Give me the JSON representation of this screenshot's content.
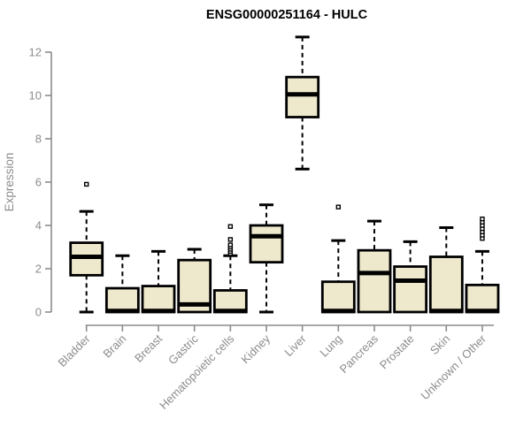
{
  "chart": {
    "title": "ENSG00000251164 - HULC",
    "ylabel": "Expression"
  },
  "chart_data": {
    "type": "boxplot",
    "title": "ENSG00000251164 - HULC",
    "xlabel": "",
    "ylabel": "Expression",
    "ylim": [
      0,
      12
    ],
    "yticks": [
      0,
      2,
      4,
      6,
      8,
      10,
      12
    ],
    "grid": false,
    "legend_position": "none",
    "categories": [
      "Bladder",
      "Brain",
      "Breast",
      "Gastric",
      "Hematopoietic cells",
      "Kidney",
      "Liver",
      "Lung",
      "Pancreas",
      "Prostate",
      "Skin",
      "Unknown / Other"
    ],
    "boxes": [
      {
        "category": "Bladder",
        "whisker_low": 0,
        "q1": 1.7,
        "median": 2.55,
        "q3": 3.2,
        "whisker_high": 4.65,
        "outliers": [
          5.9
        ]
      },
      {
        "category": "Brain",
        "whisker_low": 0,
        "q1": 0,
        "median": 0.05,
        "q3": 1.1,
        "whisker_high": 2.6,
        "outliers": []
      },
      {
        "category": "Breast",
        "whisker_low": 0,
        "q1": 0,
        "median": 0.05,
        "q3": 1.2,
        "whisker_high": 2.8,
        "outliers": []
      },
      {
        "category": "Gastric",
        "whisker_low": 0,
        "q1": 0,
        "median": 0.35,
        "q3": 2.4,
        "whisker_high": 2.9,
        "outliers": []
      },
      {
        "category": "Hematopoietic cells",
        "whisker_low": 0,
        "q1": 0,
        "median": 0.05,
        "q3": 1.0,
        "whisker_high": 2.6,
        "outliers": [
          2.7,
          2.8,
          2.9,
          3.0,
          3.1,
          3.35,
          3.95
        ]
      },
      {
        "category": "Kidney",
        "whisker_low": 0,
        "q1": 2.3,
        "median": 3.5,
        "q3": 4.0,
        "whisker_high": 4.95,
        "outliers": []
      },
      {
        "category": "Liver",
        "whisker_low": 6.6,
        "q1": 9.0,
        "median": 10.05,
        "q3": 10.85,
        "whisker_high": 12.7,
        "outliers": []
      },
      {
        "category": "Lung",
        "whisker_low": 0,
        "q1": 0,
        "median": 0.05,
        "q3": 1.4,
        "whisker_high": 3.3,
        "outliers": [
          4.85
        ]
      },
      {
        "category": "Pancreas",
        "whisker_low": 0,
        "q1": 0,
        "median": 1.8,
        "q3": 2.85,
        "whisker_high": 4.2,
        "outliers": []
      },
      {
        "category": "Prostate",
        "whisker_low": 0,
        "q1": 0,
        "median": 1.45,
        "q3": 2.1,
        "whisker_high": 3.25,
        "outliers": []
      },
      {
        "category": "Skin",
        "whisker_low": 0,
        "q1": 0,
        "median": 0.05,
        "q3": 2.55,
        "whisker_high": 3.9,
        "outliers": []
      },
      {
        "category": "Unknown / Other",
        "whisker_low": 0,
        "q1": 0,
        "median": 0.05,
        "q3": 1.25,
        "whisker_high": 2.8,
        "outliers": [
          3.4,
          3.55,
          3.7,
          3.85,
          4.0,
          4.15,
          4.3
        ]
      }
    ],
    "colors": {
      "box_fill": "#EEE8CD",
      "box_border": "#000000",
      "median": "#000000",
      "whisker": "#000000",
      "axis": "#8c8c8c",
      "tick_label": "#8c8c8c",
      "title": "#000000",
      "background": "#ffffff"
    }
  }
}
